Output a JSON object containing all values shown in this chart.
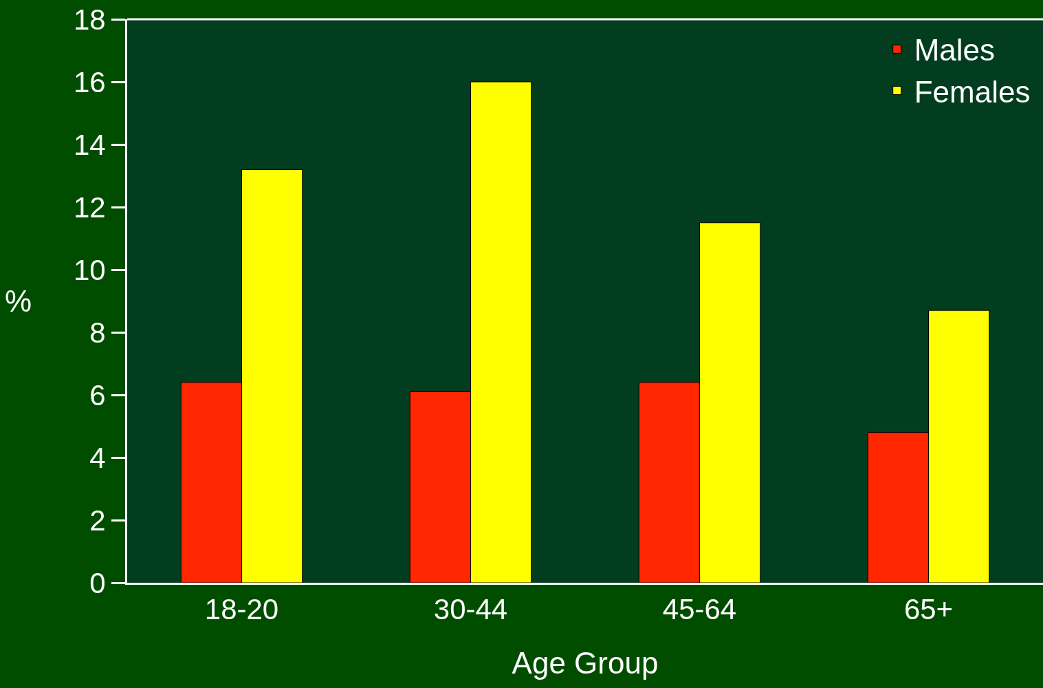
{
  "chart_data": {
    "type": "bar",
    "categories": [
      "18-20",
      "30-44",
      "45-64",
      "65+"
    ],
    "series": [
      {
        "name": "Males",
        "color": "#ff2600",
        "values": [
          6.4,
          6.1,
          6.4,
          4.8
        ]
      },
      {
        "name": "Females",
        "color": "#ffff00",
        "values": [
          13.2,
          16,
          11.5,
          8.7
        ]
      }
    ],
    "xlabel": "Age Group",
    "ylabel": "%",
    "ylim": [
      0,
      18
    ],
    "yticks": [
      0,
      2,
      4,
      6,
      8,
      10,
      12,
      14,
      16,
      18
    ],
    "grid": false,
    "legend": "top right"
  }
}
